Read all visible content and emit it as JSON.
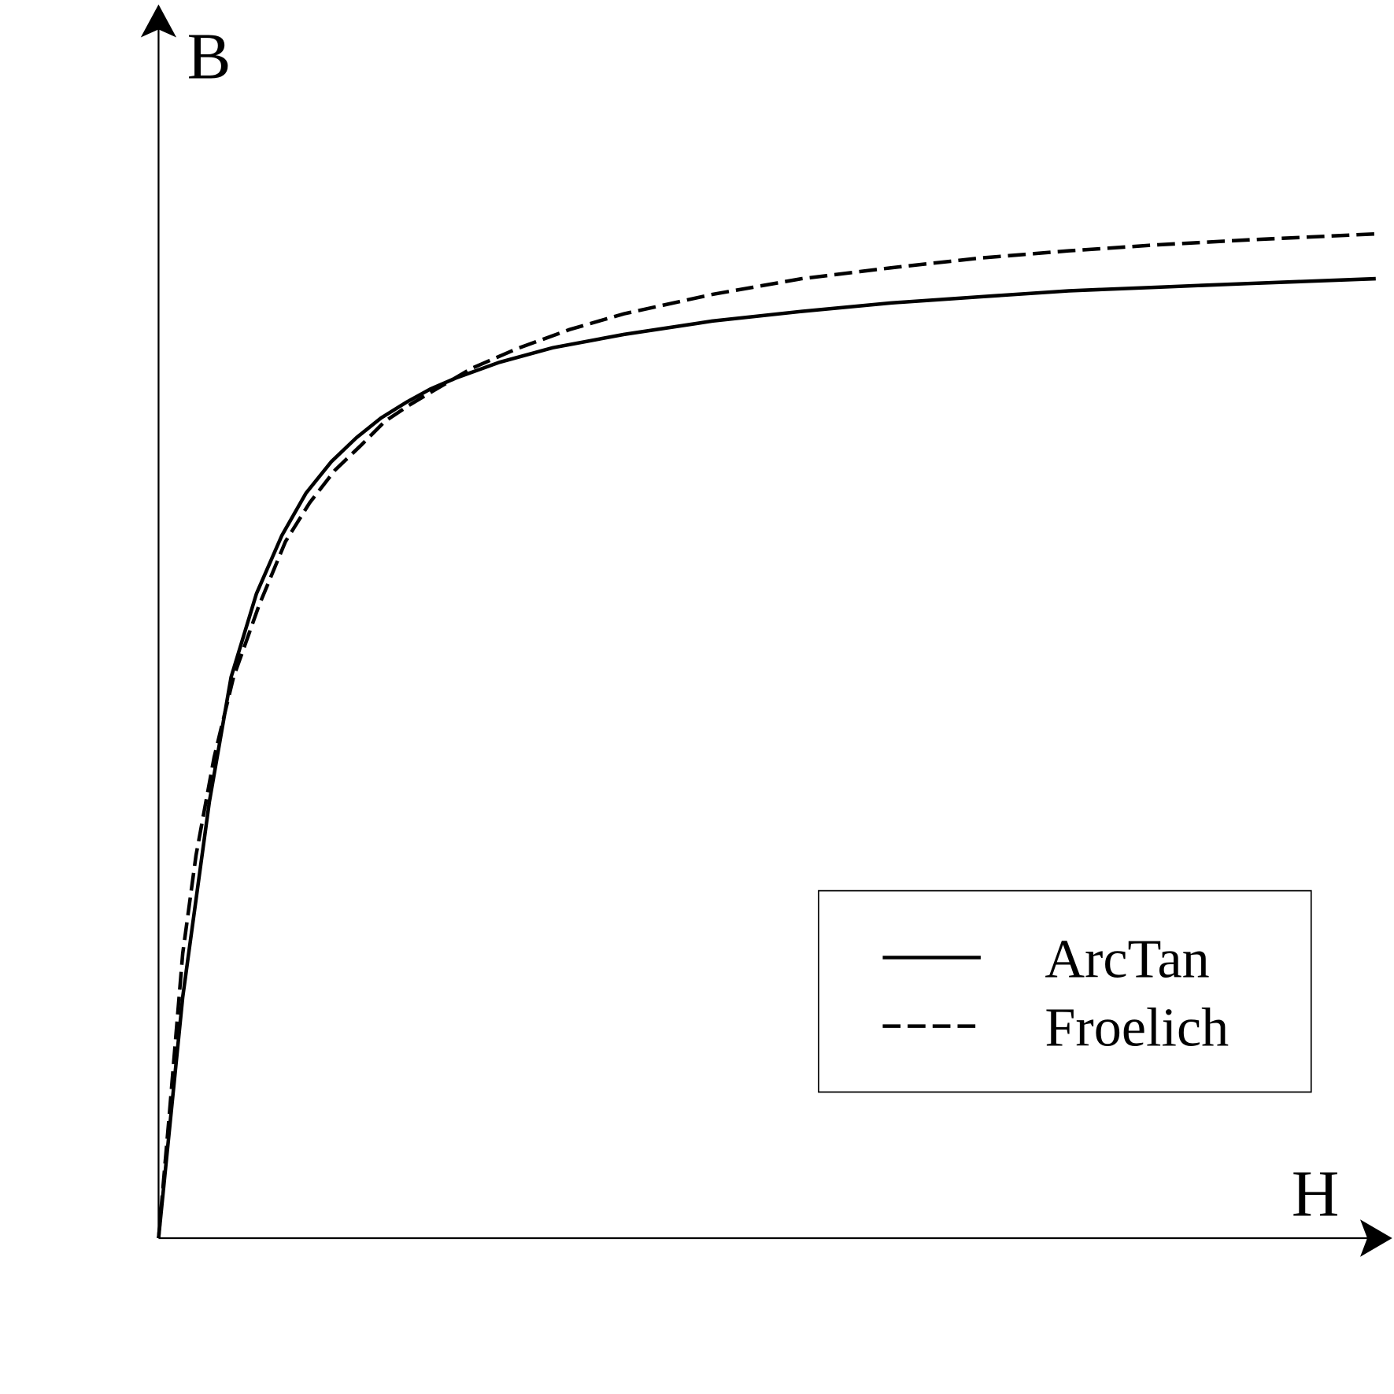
{
  "chart_data": {
    "type": "line",
    "title": "",
    "xlabel": "H",
    "ylabel": "B",
    "xlim": [
      0,
      100
    ],
    "ylim": [
      0,
      100
    ],
    "grid": false,
    "ticks": false,
    "legend_position": "bottom-right",
    "series": [
      {
        "name": "ArcTan",
        "style": "solid",
        "color": "#000000",
        "x": [
          0,
          2.0,
          4.2,
          6.0,
          8.1,
          10.2,
          12.2,
          14.3,
          16.4,
          18.4,
          20.5,
          22.5,
          24.6,
          28.2,
          32.6,
          38.5,
          45.8,
          53.2,
          60.6,
          67.9,
          75.3,
          82.7,
          90.1,
          100.7
        ],
        "y": [
          0,
          19.9,
          36.0,
          46.3,
          53.2,
          58.0,
          61.5,
          64.1,
          66.1,
          67.7,
          69.0,
          70.1,
          71.0,
          72.3,
          73.5,
          74.6,
          75.7,
          76.5,
          77.2,
          77.7,
          78.2,
          78.5,
          78.8,
          79.2
        ]
      },
      {
        "name": "Froelich",
        "style": "dashed",
        "color": "#000000",
        "x": [
          0,
          0.9,
          2.0,
          3.1,
          4.6,
          6.2,
          8.3,
          10.5,
          12.5,
          14.6,
          16.7,
          18.7,
          20.8,
          23.0,
          25.9,
          29.6,
          34.0,
          38.5,
          45.8,
          53.2,
          60.6,
          67.9,
          75.3,
          82.7,
          90.1,
          100.7
        ],
        "y": [
          0,
          10.3,
          23.5,
          31.6,
          39.7,
          46.3,
          52.2,
          57.5,
          60.7,
          63.4,
          65.4,
          67.4,
          68.8,
          70.1,
          71.8,
          73.4,
          75.0,
          76.3,
          77.9,
          79.2,
          80.1,
          80.9,
          81.5,
          82.0,
          82.4,
          82.9
        ]
      }
    ]
  }
}
